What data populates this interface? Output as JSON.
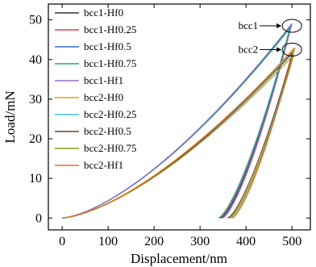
{
  "chart_data": {
    "type": "line",
    "xlabel": "Displacement/nm",
    "ylabel": "Load/mN",
    "xlim": [
      -30,
      540
    ],
    "ylim": [
      -3,
      54
    ],
    "xticks": [
      0,
      100,
      200,
      300,
      400,
      500
    ],
    "yticks": [
      0,
      10,
      20,
      30,
      40,
      50
    ],
    "legend_position": "top-left",
    "annotations": [
      {
        "text": "bcc1",
        "x": 500,
        "y": 48.5
      },
      {
        "text": "bcc2",
        "x": 500,
        "y": 42.5
      }
    ],
    "series": [
      {
        "name": "bcc1-Hf0",
        "color": "#333333",
        "peak": [
          498,
          48.3
        ],
        "residual": 345
      },
      {
        "name": "bcc1-Hf0.25",
        "color": "#e8414a",
        "peak": [
          497,
          48.6
        ],
        "residual": 342
      },
      {
        "name": "bcc1-Hf0.5",
        "color": "#2a6fd1",
        "peak": [
          499,
          48.9
        ],
        "residual": 347
      },
      {
        "name": "bcc1-Hf0.75",
        "color": "#1aa97e",
        "peak": [
          496,
          48.1
        ],
        "residual": 340
      },
      {
        "name": "bcc1-Hf1",
        "color": "#9a6fd6",
        "peak": [
          500,
          49.1
        ],
        "residual": 349
      },
      {
        "name": "bcc2-Hf0",
        "color": "#d9a21b",
        "peak": [
          505,
          42.6
        ],
        "residual": 368
      },
      {
        "name": "bcc2-Hf0.25",
        "color": "#3fc2cf",
        "peak": [
          503,
          42.1
        ],
        "residual": 365
      },
      {
        "name": "bcc2-Hf0.5",
        "color": "#7a3b2e",
        "peak": [
          501,
          41.6
        ],
        "residual": 360
      },
      {
        "name": "bcc2-Hf0.75",
        "color": "#8a9a1c",
        "peak": [
          504,
          41.2
        ],
        "residual": 363
      },
      {
        "name": "bcc2-Hf1",
        "color": "#e8741e",
        "peak": [
          506,
          43.0
        ],
        "residual": 370
      }
    ]
  }
}
